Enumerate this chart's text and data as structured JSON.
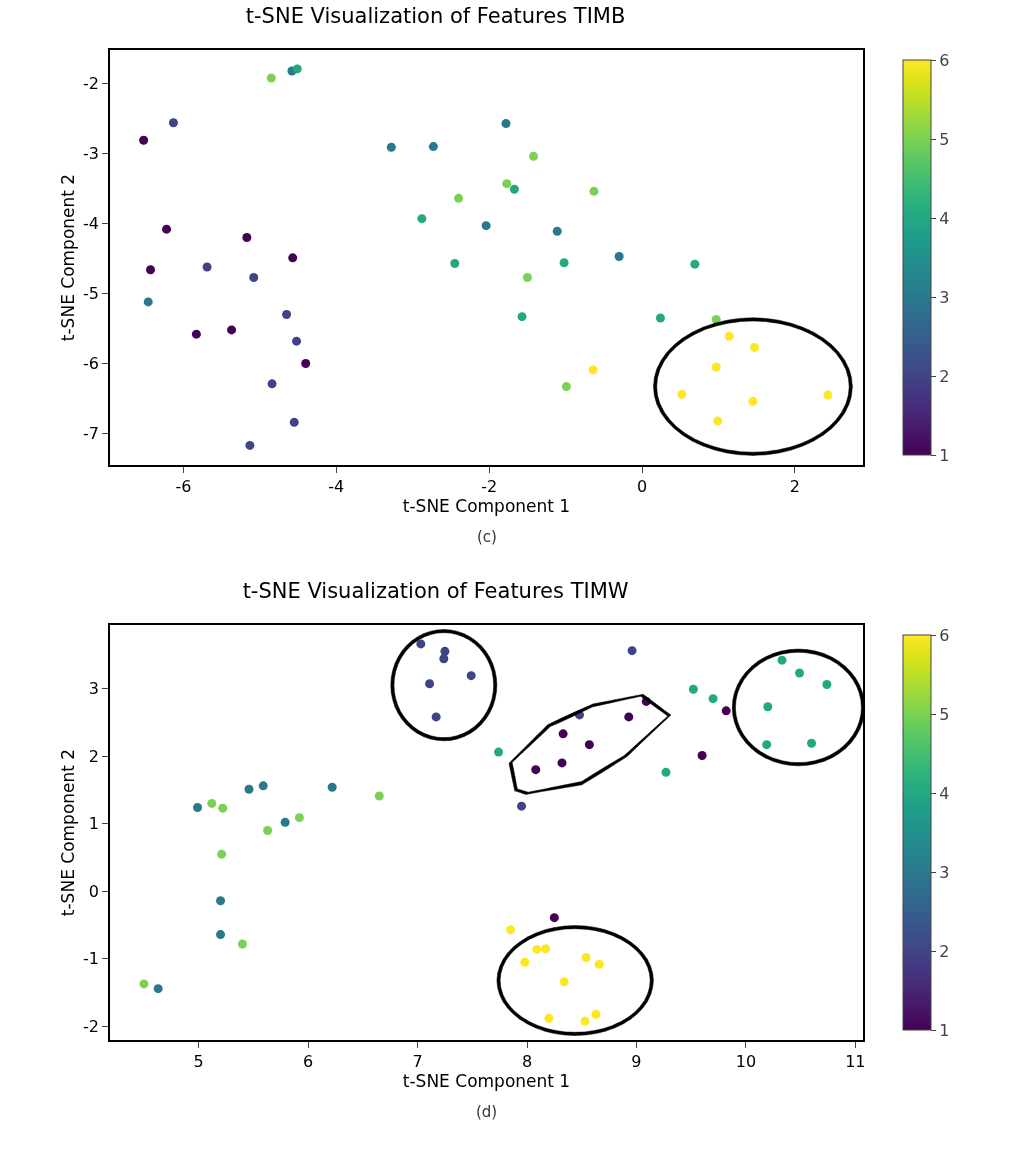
{
  "chart_data": [
    {
      "type": "scatter",
      "title": "t-SNE Visualization of Features TIMB",
      "xlabel": "t-SNE Component 1",
      "ylabel": "t-SNE Component 2",
      "clabel": null,
      "x": [
        -4.85,
        -4.58,
        -4.51,
        -6.13,
        -6.52,
        -3.28,
        -2.73,
        -2.4,
        -2.88,
        -2.04,
        -2.45,
        -6.22,
        -5.17,
        -4.57,
        -6.43,
        -5.69,
        -5.08,
        -6.46,
        -4.65,
        -5.83,
        -5.37,
        -4.52,
        -4.4,
        -4.84,
        -4.55,
        -5.13,
        -1.78,
        -1.42,
        -1.77,
        -1.67,
        -0.63,
        -1.11,
        -0.3,
        -1.02,
        -1.5,
        0.69,
        -1.57,
        0.24,
        0.97,
        -0.64,
        -0.99,
        1.14,
        1.47,
        0.97,
        0.52,
        1.45,
        2.43,
        0.99
      ],
      "values": [
        -1.92,
        -1.82,
        -1.79,
        -2.56,
        -2.81,
        -2.91,
        -2.9,
        -3.64,
        -3.93,
        -4.03,
        -4.57,
        -4.08,
        -4.2,
        -4.49,
        -4.66,
        -4.62,
        -4.77,
        -5.12,
        -5.3,
        -5.58,
        -5.52,
        -5.68,
        -6.0,
        -6.29,
        -6.84,
        -7.17,
        -2.57,
        -3.04,
        -3.43,
        -3.51,
        -3.54,
        -4.11,
        -4.47,
        -4.56,
        -4.77,
        -4.58,
        -5.33,
        -5.35,
        -5.37,
        -6.09,
        -6.33,
        -5.61,
        -5.77,
        -6.05,
        -6.44,
        -6.54,
        -6.45,
        -6.82
      ],
      "cvalues": [
        5,
        3,
        4,
        2,
        1,
        3,
        3,
        5,
        4,
        3,
        4,
        1,
        1,
        1,
        1,
        2,
        2,
        3,
        2,
        1,
        1,
        2,
        1,
        2,
        2,
        2,
        3,
        5,
        5,
        4,
        5,
        3,
        3,
        4,
        5,
        4,
        4,
        4,
        5,
        6,
        5,
        6,
        6,
        6,
        6,
        6,
        6,
        6
      ],
      "xlim": [
        -6.96,
        2.89
      ],
      "ylim": [
        -7.45,
        -1.52
      ],
      "xticks": [
        -6,
        -4,
        -2,
        0,
        2
      ],
      "yticks": [
        -7,
        -6,
        -5,
        -4,
        -3,
        -2
      ],
      "clim": [
        1,
        6
      ],
      "cticks": [
        1,
        2,
        3,
        4,
        5,
        6
      ],
      "marker": "circle",
      "grid": false,
      "legend": false,
      "annotations": [
        "(c)"
      ]
    },
    {
      "type": "scatter",
      "title": "t-SNE Visualization of Features TIMW",
      "xlabel": "t-SNE Component 1",
      "ylabel": "t-SNE Component 2",
      "x": [
        7.03,
        7.25,
        7.24,
        7.49,
        7.11,
        7.17,
        7.74,
        4.99,
        5.12,
        5.22,
        5.46,
        5.59,
        6.22,
        6.65,
        5.79,
        5.92,
        5.63,
        5.21,
        5.2,
        5.2,
        5.4,
        4.5,
        4.63,
        8.96,
        9.09,
        8.48,
        8.93,
        8.33,
        8.57,
        8.32,
        8.08,
        7.95,
        9.52,
        9.7,
        9.82,
        9.6,
        9.27,
        10.33,
        10.49,
        10.74,
        10.2,
        10.19,
        10.6,
        8.25,
        7.85,
        8.09,
        8.17,
        7.98,
        8.54,
        8.66,
        8.34,
        8.2,
        8.53,
        8.63
      ],
      "values": [
        3.66,
        3.55,
        3.44,
        3.19,
        3.07,
        2.58,
        2.06,
        1.24,
        1.3,
        1.23,
        1.51,
        1.56,
        1.54,
        1.41,
        1.02,
        1.09,
        0.9,
        0.55,
        -0.14,
        -0.64,
        -0.78,
        -1.37,
        -1.44,
        3.56,
        2.81,
        2.61,
        2.58,
        2.33,
        2.17,
        1.9,
        1.8,
        1.26,
        2.99,
        2.85,
        2.67,
        2.01,
        1.76,
        3.42,
        3.23,
        3.06,
        2.73,
        2.17,
        2.19,
        -0.39,
        -0.57,
        -0.86,
        -0.85,
        -1.05,
        -0.98,
        -1.08,
        -1.34,
        -1.88,
        -1.92,
        -1.82
      ],
      "cvalues": [
        2,
        2,
        2,
        2,
        2,
        2,
        4,
        3,
        5,
        5,
        3,
        3,
        3,
        5,
        3,
        5,
        5,
        5,
        3,
        3,
        5,
        5,
        3,
        2,
        1,
        2,
        1,
        1,
        1,
        1,
        1,
        2,
        4,
        4,
        1,
        1,
        4,
        4,
        4,
        4,
        4,
        4,
        4,
        1,
        6,
        6,
        6,
        6,
        6,
        6,
        6,
        6,
        6,
        6
      ],
      "xlim": [
        4.19,
        11.07
      ],
      "ylim": [
        -2.2,
        3.94
      ],
      "xticks": [
        5,
        6,
        7,
        8,
        9,
        10,
        11
      ],
      "yticks": [
        -2,
        -1,
        0,
        1,
        2,
        3
      ],
      "clim": [
        1,
        6
      ],
      "cticks": [
        1,
        2,
        3,
        4,
        5,
        6
      ],
      "marker": "circle",
      "grid": false,
      "legend": false,
      "annotations": [
        "(d)"
      ]
    }
  ]
}
